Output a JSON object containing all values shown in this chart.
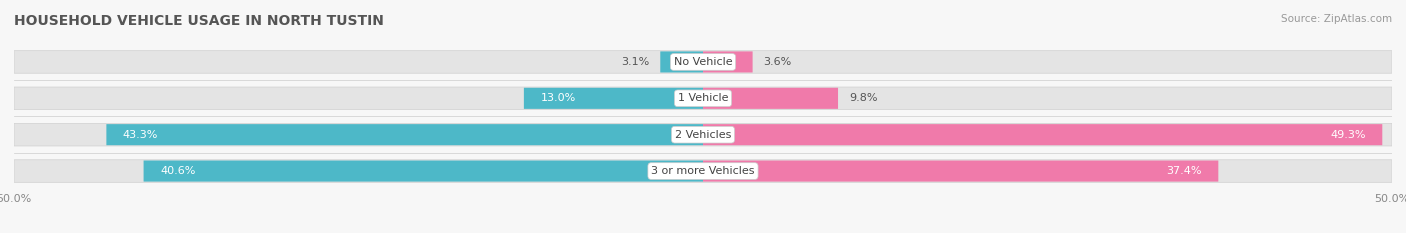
{
  "title": "HOUSEHOLD VEHICLE USAGE IN NORTH TUSTIN",
  "source": "Source: ZipAtlas.com",
  "categories": [
    "No Vehicle",
    "1 Vehicle",
    "2 Vehicles",
    "3 or more Vehicles"
  ],
  "owner_values": [
    3.1,
    13.0,
    43.3,
    40.6
  ],
  "renter_values": [
    3.6,
    9.8,
    49.3,
    37.4
  ],
  "owner_color": "#4db8c8",
  "renter_color": "#f07aaa",
  "axis_limit": 50.0,
  "bar_height": 0.62,
  "background_color": "#f7f7f7",
  "bar_bg_color": "#e4e4e4",
  "title_fontsize": 10,
  "label_fontsize": 8,
  "tick_fontsize": 8,
  "source_fontsize": 7.5,
  "category_fontsize": 8
}
